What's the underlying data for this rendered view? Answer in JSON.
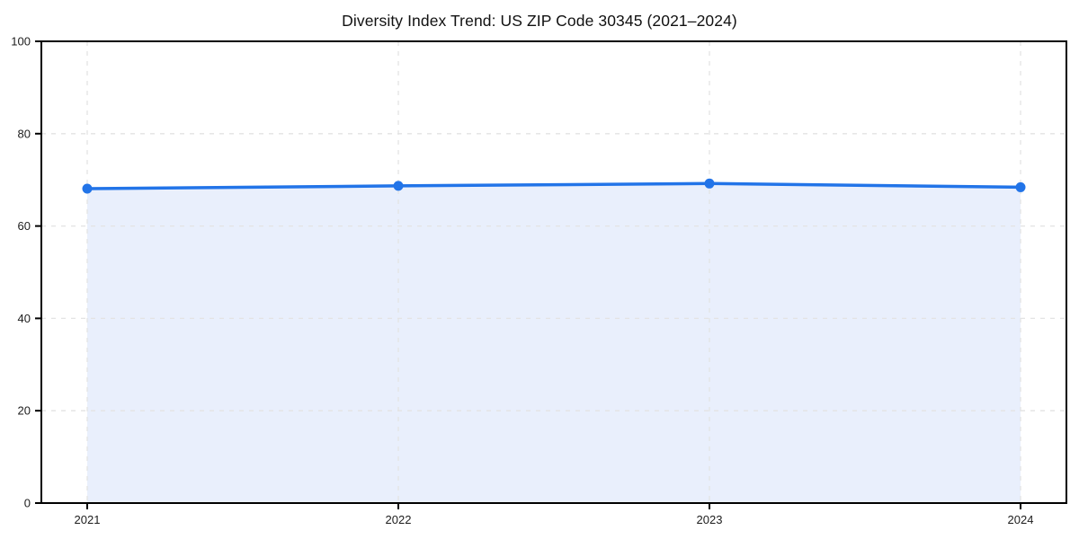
{
  "chart_data": {
    "type": "area",
    "title": "Diversity Index Trend: US ZIP Code 30345 (2021–2024)",
    "x": [
      2021,
      2022,
      2023,
      2024
    ],
    "xtick_labels": [
      "2021",
      "2022",
      "2023",
      "2024"
    ],
    "values": [
      68.1,
      68.7,
      69.2,
      68.4
    ],
    "xlabel": "",
    "ylabel": "",
    "ylim": [
      0,
      100
    ],
    "yticks": [
      0,
      20,
      40,
      60,
      80,
      100
    ],
    "grid": "both-axes dashed",
    "legend": "none",
    "colors": {
      "line": "#2274e8",
      "marker": "#2274e8",
      "fill": "#e9effc",
      "grid": "#e3e3e3",
      "spine": "#000000",
      "tick_label": "#1c1c1c",
      "title": "#111111",
      "background": "#ffffff"
    }
  }
}
